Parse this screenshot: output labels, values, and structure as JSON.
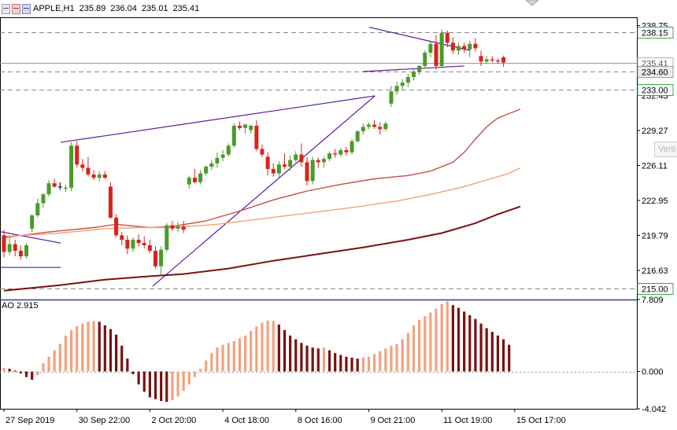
{
  "header": {
    "symbol": "APPLE,H1",
    "open": "235.89",
    "high": "236.04",
    "low": "235.01",
    "close": "235.41",
    "icons": [
      "chart-window-icon",
      "chart-window-red-icon",
      "chart-window-blue-icon"
    ]
  },
  "indicator": {
    "label": "AO 2.915"
  },
  "overlay_label": "Verti",
  "colors": {
    "background": "#ffffff",
    "bull_candle": "#4c9a2a",
    "bear_candle": "#d8231c",
    "doji": "#000000",
    "ma_fast": "#c8504a",
    "ma_mid": "#f4a070",
    "ma_slow": "#7a1010",
    "trendline": "#5b1aa3",
    "ao_up": "#f2a27e",
    "ao_down": "#7a1010",
    "hline": "#888888"
  },
  "chart_data": [
    {
      "type": "candlestick",
      "title": "APPLE,H1",
      "ylim": [
        214.0,
        239.5
      ],
      "y_ticks": [
        "238.75",
        "235.59",
        "232.43",
        "229.27",
        "226.11",
        "222.95",
        "219.79",
        "216.63"
      ],
      "x_tick_labels": [
        "27 Sep 2019",
        "30 Sep 22:00",
        "2 Oct 20:00",
        "4 Oct 18:00",
        "8 Oct 16:00",
        "9 Oct 21:00",
        "11 Oct 19:00",
        "15 Oct 17:00"
      ],
      "price_labels": [
        {
          "value": 238.15,
          "text": "238.15",
          "style": "level"
        },
        {
          "value": 235.41,
          "text": "235.41",
          "style": "current"
        },
        {
          "value": 234.6,
          "text": "234.60",
          "style": "gray"
        },
        {
          "value": 233.0,
          "text": "233.00",
          "style": "level"
        },
        {
          "value": 215.0,
          "text": "215.00",
          "style": "level"
        }
      ],
      "candles": [
        [
          219.8,
          220.3,
          217.8,
          218.3
        ],
        [
          218.3,
          219.6,
          218.0,
          219.0
        ],
        [
          219.0,
          219.4,
          217.9,
          218.4
        ],
        [
          218.4,
          218.9,
          217.6,
          217.9
        ],
        [
          217.9,
          219.1,
          217.7,
          218.9
        ],
        [
          220.4,
          221.7,
          220.1,
          221.6
        ],
        [
          221.6,
          223.1,
          221.4,
          222.7
        ],
        [
          222.7,
          223.6,
          222.3,
          223.5
        ],
        [
          223.5,
          224.8,
          223.3,
          224.5
        ],
        [
          224.5,
          224.9,
          224.1,
          224.2
        ],
        [
          224.2,
          224.6,
          223.9,
          224.2
        ],
        [
          224.0,
          224.4,
          223.7,
          224.1
        ],
        [
          224.1,
          228.2,
          223.8,
          227.9
        ],
        [
          227.9,
          228.3,
          225.9,
          226.2
        ],
        [
          226.2,
          226.7,
          225.6,
          225.9
        ],
        [
          225.9,
          226.9,
          225.1,
          225.3
        ],
        [
          225.3,
          225.7,
          224.8,
          225.0
        ],
        [
          225.0,
          225.6,
          224.7,
          225.3
        ],
        [
          225.3,
          225.6,
          224.9,
          225.0
        ],
        [
          224.2,
          224.6,
          221.3,
          221.4
        ],
        [
          221.4,
          221.7,
          219.6,
          219.8
        ],
        [
          219.8,
          220.1,
          218.9,
          219.4
        ],
        [
          219.4,
          219.8,
          218.1,
          218.6
        ],
        [
          218.6,
          219.6,
          218.3,
          219.4
        ],
        [
          219.4,
          219.9,
          218.8,
          219.1
        ],
        [
          219.1,
          219.7,
          218.6,
          218.9
        ],
        [
          218.9,
          219.4,
          218.2,
          218.4
        ],
        [
          218.4,
          218.8,
          216.8,
          217.0
        ],
        [
          217.0,
          218.8,
          216.2,
          218.5
        ],
        [
          218.5,
          220.9,
          218.3,
          220.7
        ],
        [
          220.7,
          221.1,
          220.2,
          220.4
        ],
        [
          220.4,
          221.0,
          220.1,
          220.6
        ],
        [
          220.6,
          221.1,
          220.0,
          220.3
        ],
        [
          224.4,
          225.2,
          224.0,
          225.0
        ],
        [
          225.0,
          225.8,
          224.5,
          224.6
        ],
        [
          224.6,
          225.7,
          224.4,
          225.4
        ],
        [
          225.4,
          226.1,
          225.2,
          226.0
        ],
        [
          226.0,
          226.6,
          225.7,
          226.3
        ],
        [
          226.3,
          227.3,
          225.9,
          226.8
        ],
        [
          226.8,
          227.5,
          226.5,
          227.1
        ],
        [
          227.1,
          228.1,
          226.9,
          227.9
        ],
        [
          227.9,
          229.9,
          227.7,
          229.7
        ],
        [
          229.7,
          230.1,
          229.3,
          229.5
        ],
        [
          229.5,
          229.9,
          229.0,
          229.8
        ],
        [
          229.3,
          229.8,
          229.0,
          229.7
        ],
        [
          229.7,
          230.2,
          227.4,
          227.6
        ],
        [
          227.6,
          228.0,
          226.9,
          227.1
        ],
        [
          226.9,
          227.3,
          225.2,
          225.8
        ],
        [
          225.8,
          226.3,
          225.1,
          225.4
        ],
        [
          225.4,
          226.5,
          225.0,
          226.2
        ],
        [
          226.2,
          227.2,
          225.8,
          226.0
        ],
        [
          226.0,
          227.0,
          225.6,
          226.6
        ],
        [
          226.6,
          227.4,
          226.4,
          227.1
        ],
        [
          227.1,
          228.1,
          226.0,
          226.4
        ],
        [
          226.4,
          226.9,
          224.3,
          224.7
        ],
        [
          224.7,
          226.9,
          224.4,
          226.6
        ],
        [
          226.6,
          226.8,
          225.9,
          226.4
        ],
        [
          226.4,
          226.9,
          225.9,
          226.7
        ],
        [
          226.7,
          227.4,
          226.5,
          227.2
        ],
        [
          227.2,
          227.6,
          226.8,
          227.1
        ],
        [
          227.1,
          227.7,
          226.9,
          227.5
        ],
        [
          227.5,
          227.8,
          227.0,
          227.3
        ],
        [
          227.3,
          228.5,
          227.1,
          228.3
        ],
        [
          228.3,
          229.3,
          228.2,
          229.2
        ],
        [
          229.2,
          229.9,
          228.9,
          229.6
        ],
        [
          229.6,
          230.0,
          229.4,
          229.8
        ],
        [
          229.8,
          230.2,
          229.4,
          229.6
        ],
        [
          229.6,
          230.0,
          228.9,
          229.4
        ],
        [
          229.4,
          230.1,
          229.2,
          229.9
        ],
        [
          231.7,
          233.3,
          231.4,
          232.8
        ],
        [
          232.8,
          233.7,
          232.5,
          233.3
        ],
        [
          233.3,
          233.9,
          232.9,
          233.6
        ],
        [
          233.6,
          234.4,
          233.2,
          234.1
        ],
        [
          234.1,
          234.9,
          233.8,
          234.6
        ],
        [
          234.6,
          235.2,
          234.3,
          235.1
        ],
        [
          235.1,
          236.5,
          234.9,
          236.3
        ],
        [
          236.3,
          237.3,
          235.9,
          237.1
        ],
        [
          237.1,
          237.9,
          234.8,
          235.1
        ],
        [
          235.1,
          238.4,
          234.9,
          238.1
        ],
        [
          238.1,
          238.3,
          236.8,
          237.2
        ],
        [
          237.2,
          237.7,
          236.2,
          236.5
        ],
        [
          236.5,
          237.2,
          236.1,
          236.9
        ],
        [
          236.9,
          237.2,
          236.3,
          236.6
        ],
        [
          236.6,
          237.4,
          235.9,
          237.1
        ],
        [
          237.1,
          237.6,
          236.4,
          236.7
        ],
        [
          236.0,
          236.5,
          235.1,
          235.5
        ],
        [
          235.5,
          236.0,
          235.3,
          235.7
        ],
        [
          235.7,
          236.0,
          235.4,
          235.6
        ],
        [
          235.6,
          235.8,
          235.3,
          235.5
        ],
        [
          235.89,
          236.04,
          235.01,
          235.41
        ]
      ],
      "series": [
        {
          "name": "",
          "style": "ma_fast",
          "values": [
            [
              0,
              219.6
            ],
            [
              8,
              220.1
            ],
            [
              16,
              220.5
            ],
            [
              20,
              220.8
            ],
            [
              26,
              220.5
            ],
            [
              30,
              220.6
            ],
            [
              36,
              221.1
            ],
            [
              42,
              222.0
            ],
            [
              48,
              223.0
            ],
            [
              54,
              223.8
            ],
            [
              60,
              224.4
            ],
            [
              66,
              224.9
            ],
            [
              72,
              225.2
            ],
            [
              76,
              225.6
            ],
            [
              80,
              226.4
            ],
            [
              82,
              227.3
            ],
            [
              84,
              228.5
            ],
            [
              86,
              229.6
            ],
            [
              88,
              230.4
            ],
            [
              90,
              230.8
            ],
            [
              92,
              231.2
            ]
          ]
        },
        {
          "name": "",
          "style": "ma_mid",
          "values": [
            [
              0,
              219.7
            ],
            [
              10,
              220.0
            ],
            [
              18,
              220.4
            ],
            [
              24,
              220.5
            ],
            [
              30,
              220.5
            ],
            [
              38,
              220.8
            ],
            [
              46,
              221.3
            ],
            [
              54,
              221.8
            ],
            [
              62,
              222.3
            ],
            [
              70,
              222.9
            ],
            [
              76,
              223.5
            ],
            [
              82,
              224.2
            ],
            [
              86,
              224.8
            ],
            [
              90,
              225.4
            ],
            [
              92,
              225.9
            ]
          ]
        },
        {
          "name": "",
          "style": "ma_slow",
          "values": [
            [
              0,
              214.8
            ],
            [
              10,
              215.3
            ],
            [
              18,
              215.8
            ],
            [
              26,
              216.1
            ],
            [
              32,
              216.3
            ],
            [
              40,
              216.8
            ],
            [
              48,
              217.5
            ],
            [
              56,
              218.1
            ],
            [
              64,
              218.7
            ],
            [
              72,
              219.4
            ],
            [
              78,
              220.0
            ],
            [
              84,
              220.9
            ],
            [
              88,
              221.7
            ],
            [
              92,
              222.4
            ]
          ]
        }
      ],
      "trendlines": [
        {
          "from": [
            -1.4,
            220.2
          ],
          "to": [
            10.1,
            219.1
          ]
        },
        {
          "from": [
            -1.4,
            216.9
          ],
          "to": [
            10.1,
            216.9
          ]
        },
        {
          "from": [
            10.1,
            228.2
          ],
          "to": [
            66.1,
            232.4
          ]
        },
        {
          "from": [
            26.5,
            215.2
          ],
          "to": [
            66.1,
            232.4
          ]
        },
        {
          "from": [
            65.1,
            238.6
          ],
          "to": [
            83.1,
            236.5
          ]
        },
        {
          "from": [
            64.0,
            234.6
          ],
          "to": [
            82.0,
            235.1
          ]
        }
      ]
    },
    {
      "type": "bar",
      "title": "AO",
      "ylim": [
        -4.042,
        7.809
      ],
      "y_ticks": [
        "7.809",
        "0.000",
        "-4.042"
      ],
      "values": [
        0.4,
        0.3,
        0.1,
        -0.2,
        -0.6,
        -0.9,
        -0.4,
        0.9,
        1.6,
        2.3,
        3.0,
        3.9,
        4.5,
        4.9,
        5.2,
        5.4,
        5.5,
        5.4,
        5.0,
        4.6,
        4.0,
        2.8,
        1.4,
        -0.3,
        -1.4,
        -2.2,
        -2.8,
        -3.0,
        -3.2,
        -3.3,
        -3.1,
        -2.7,
        -2.1,
        -1.4,
        -0.6,
        0.3,
        1.2,
        2.0,
        2.6,
        2.9,
        3.1,
        3.3,
        3.6,
        3.9,
        4.4,
        4.9,
        5.3,
        5.5,
        5.5,
        5.1,
        4.5,
        3.9,
        3.5,
        3.1,
        2.8,
        2.6,
        2.5,
        2.6,
        2.3,
        2.0,
        1.8,
        1.6,
        1.5,
        1.4,
        1.5,
        1.6,
        1.9,
        2.2,
        2.5,
        2.8,
        3.0,
        3.5,
        4.2,
        5.0,
        5.6,
        6.0,
        6.4,
        6.8,
        7.3,
        7.6,
        7.2,
        6.9,
        6.5,
        6.1,
        5.7,
        5.2,
        4.7,
        4.3,
        3.9,
        3.5,
        2.9
      ]
    }
  ]
}
